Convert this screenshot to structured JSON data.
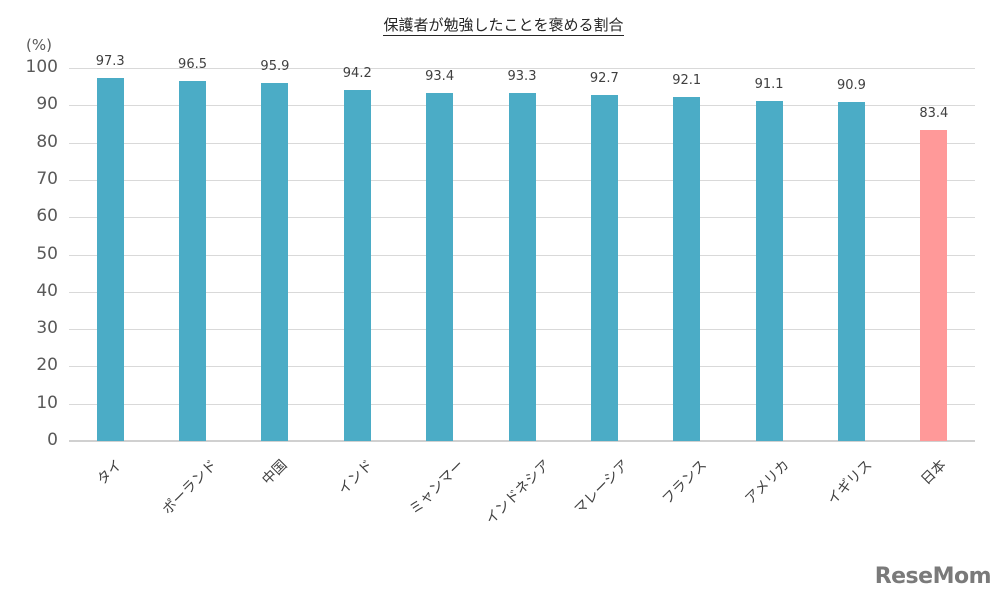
{
  "chart_data": {
    "type": "bar",
    "title": "保護者が勉強したことを褒める割合",
    "xlabel": "",
    "ylabel": "(%)",
    "ylim": [
      0,
      100
    ],
    "yticks": [
      0,
      10,
      20,
      30,
      40,
      50,
      60,
      70,
      80,
      90,
      100
    ],
    "grid": true,
    "legend": null,
    "categories": [
      "タイ",
      "ポーランド",
      "中国",
      "インド",
      "ミャンマー",
      "インドネシア",
      "マレーシア",
      "フランス",
      "アメリカ",
      "イギリス",
      "日本"
    ],
    "values": [
      97.3,
      96.5,
      95.9,
      94.2,
      93.4,
      93.3,
      92.7,
      92.1,
      91.1,
      90.9,
      83.4
    ],
    "value_labels": [
      "97.3",
      "96.5",
      "95.9",
      "94.2",
      "93.4",
      "93.3",
      "92.7",
      "92.1",
      "91.1",
      "90.9",
      "83.4"
    ],
    "colors": [
      "#4bacc6",
      "#4bacc6",
      "#4bacc6",
      "#4bacc6",
      "#4bacc6",
      "#4bacc6",
      "#4bacc6",
      "#4bacc6",
      "#4bacc6",
      "#4bacc6",
      "#ff9999"
    ]
  },
  "watermark": "ReseMom"
}
